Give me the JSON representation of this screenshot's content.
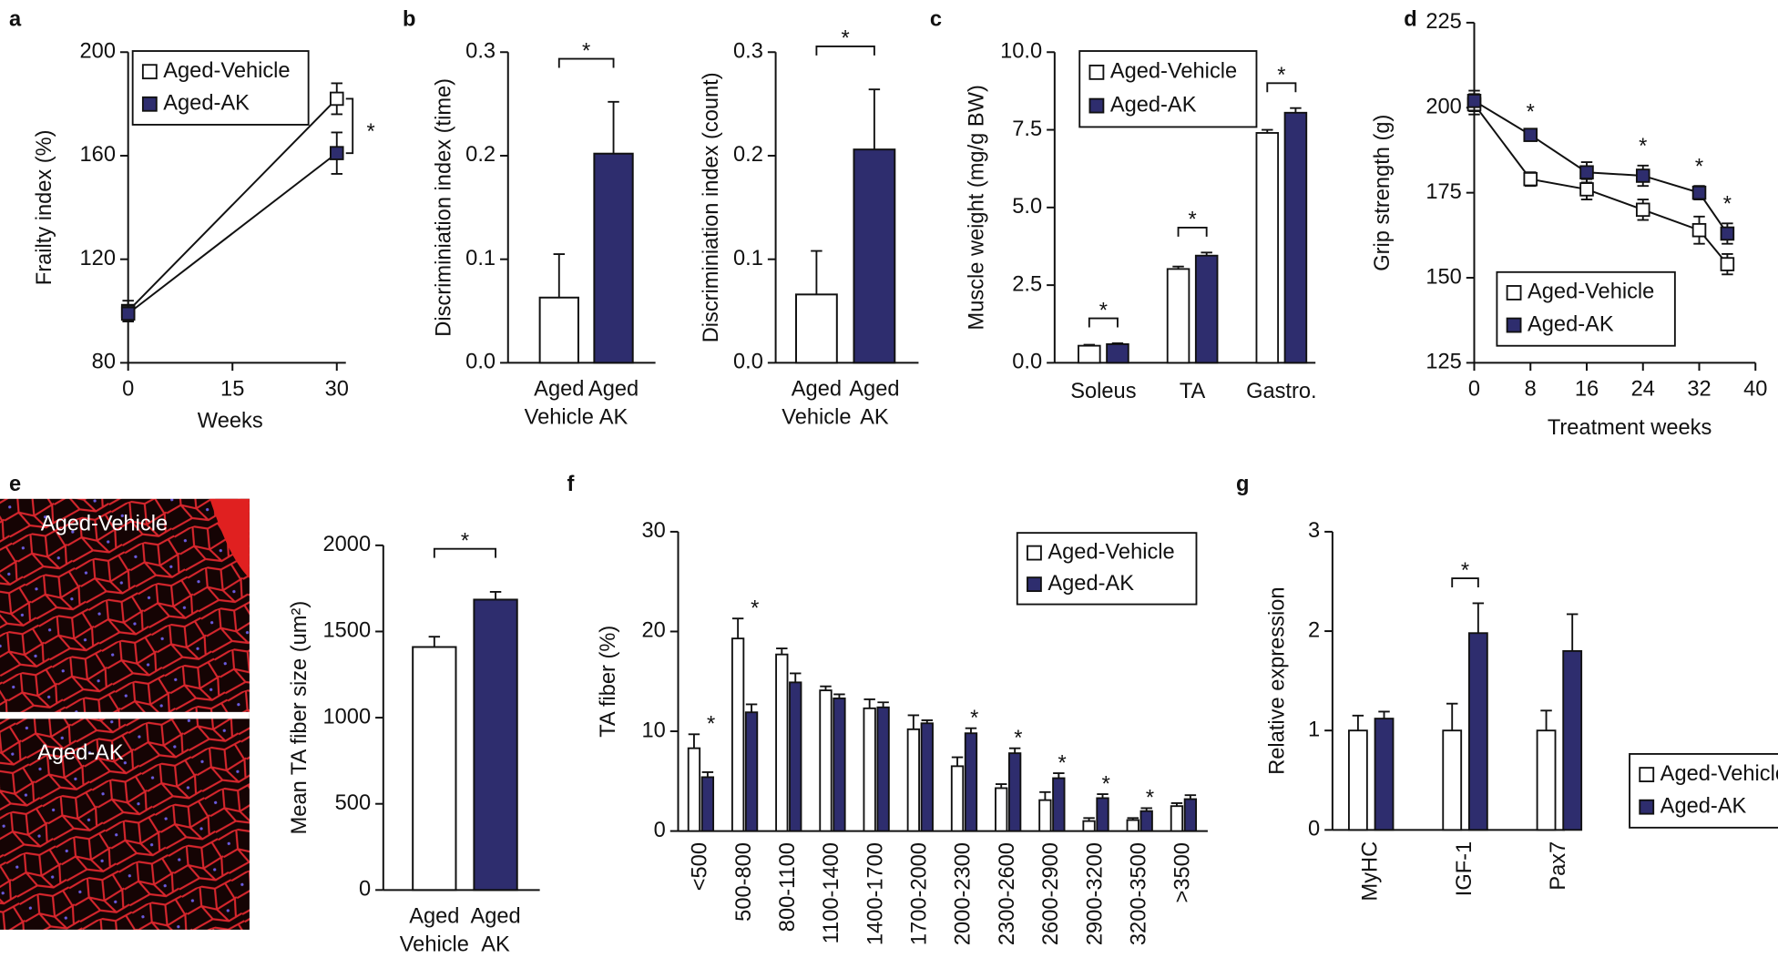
{
  "chart_data": [
    {
      "type": "line",
      "label": "a",
      "xlabel": "Weeks",
      "ylabel": "Frailty index (%)",
      "x": [
        0,
        30
      ],
      "series": [
        {
          "name": "Aged-Vehicle",
          "color": "#ffffff",
          "values": [
            100,
            182
          ],
          "errors": [
            4,
            6
          ]
        },
        {
          "name": "Aged-AK",
          "color": "#2e2d6e",
          "values": [
            99,
            161
          ],
          "errors": [
            3,
            8
          ]
        }
      ],
      "xlim": [
        0,
        30
      ],
      "xticks": [
        0,
        15,
        30
      ],
      "ylim": [
        80,
        200
      ],
      "yticks": [
        80,
        120,
        160,
        200
      ],
      "legend": "upper left",
      "annotation": "*"
    },
    {
      "type": "bar",
      "label": "b",
      "ylabel": "Discriminiation index (time)",
      "categories": [
        [
          "Aged",
          "Vehicle"
        ],
        [
          "Aged",
          "AK"
        ]
      ],
      "values": [
        0.063,
        0.202
      ],
      "errors": [
        0.042,
        0.05
      ],
      "colors": [
        "#ffffff",
        "#2e2d6e"
      ],
      "ylim": [
        0,
        0.3
      ],
      "yticks": [
        {
          "value": 0,
          "label": "0.0"
        },
        0.1,
        0.2,
        0.3
      ],
      "annotation": "*"
    },
    {
      "type": "bar",
      "ylabel": "Discriminiation index (count)",
      "categories": [
        [
          "Aged",
          "Vehicle"
        ],
        [
          "Aged",
          "AK"
        ]
      ],
      "values": [
        0.066,
        0.206
      ],
      "errors": [
        0.042,
        0.058
      ],
      "colors": [
        "#ffffff",
        "#2e2d6e"
      ],
      "ylim": [
        0,
        0.3
      ],
      "yticks": [
        {
          "value": 0,
          "label": "0.0"
        },
        0.1,
        0.2,
        0.3
      ],
      "annotation": "*"
    },
    {
      "type": "grouped_bar",
      "label": "c",
      "ylabel": "Muscle weight (mg/g BW)",
      "categories": [
        "Soleus",
        "TA",
        "Gastro."
      ],
      "series": [
        {
          "name": "Aged-Vehicle",
          "color": "#ffffff",
          "values": [
            0.55,
            3.02,
            7.4
          ],
          "errors": [
            0.03,
            0.08,
            0.1
          ]
        },
        {
          "name": "Aged-AK",
          "color": "#2e2d6e",
          "values": [
            0.6,
            3.45,
            8.05
          ],
          "errors": [
            0.03,
            0.1,
            0.15
          ]
        }
      ],
      "ylim": [
        0,
        10
      ],
      "yticks": [
        {
          "value": 0,
          "label": "0.0"
        },
        2.5,
        {
          "value": 5,
          "label": "5.0"
        },
        7.5,
        {
          "value": 10,
          "label": "10.0"
        }
      ],
      "legend": "upper left",
      "significance": [
        "*",
        "*",
        "*"
      ]
    },
    {
      "type": "line",
      "label": "d",
      "xlabel": "Treatment weeks",
      "ylabel": "Grip strength (g)",
      "x": [
        0,
        8,
        16,
        24,
        32,
        36
      ],
      "series": [
        {
          "name": "Aged-Vehicle",
          "color": "#ffffff",
          "values": [
            201,
            179,
            176,
            170,
            164,
            154
          ],
          "errors": [
            3,
            2,
            3,
            3,
            4,
            3
          ]
        },
        {
          "name": "Aged-AK",
          "color": "#2e2d6e",
          "values": [
            202,
            192,
            181,
            180,
            175,
            163
          ],
          "errors": [
            3,
            1,
            3,
            3,
            2,
            3
          ]
        }
      ],
      "xlim": [
        0,
        40
      ],
      "xticks": [
        0,
        8,
        16,
        24,
        32,
        40
      ],
      "ylim": [
        125,
        225
      ],
      "yticks": [
        125,
        150,
        175,
        200,
        225
      ],
      "legend": "lower left",
      "significance": [
        null,
        "*",
        null,
        "*",
        "*",
        "*"
      ]
    },
    {
      "type": "bar",
      "label": "e",
      "ylabel": "Mean TA fiber size (um²)",
      "image_labels": [
        "Aged-Vehicle",
        "Aged-AK"
      ],
      "categories": [
        [
          "Aged",
          "Vehicle"
        ],
        [
          "Aged",
          "AK"
        ]
      ],
      "values": [
        1410,
        1685
      ],
      "errors": [
        60,
        45
      ],
      "colors": [
        "#ffffff",
        "#2e2d6e"
      ],
      "ylim": [
        0,
        2000
      ],
      "yticks": [
        0,
        500,
        1000,
        1500,
        2000
      ],
      "annotation": "*"
    },
    {
      "type": "grouped_bar",
      "label": "f",
      "ylabel": "TA fiber (%)",
      "categories": [
        "<500",
        "500-800",
        "800-1100",
        "1100-1400",
        "1400-1700",
        "1700-2000",
        "2000-2300",
        "2300-2600",
        "2600-2900",
        "2900-3200",
        "3200-3500",
        ">3500"
      ],
      "series": [
        {
          "name": "Aged-Vehicle",
          "color": "#ffffff",
          "values": [
            8.3,
            19.3,
            17.7,
            14.1,
            12.3,
            10.2,
            6.5,
            4.3,
            3.1,
            1.0,
            1.1,
            2.5
          ],
          "errors": [
            1.4,
            2.0,
            0.6,
            0.4,
            0.9,
            1.4,
            0.9,
            0.4,
            0.8,
            0.3,
            0.2,
            0.3
          ]
        },
        {
          "name": "Aged-AK",
          "color": "#2e2d6e",
          "values": [
            5.4,
            11.9,
            14.9,
            13.3,
            12.4,
            10.8,
            9.8,
            7.8,
            5.3,
            3.3,
            2.0,
            3.2
          ],
          "errors": [
            0.5,
            0.8,
            0.9,
            0.4,
            0.5,
            0.3,
            0.5,
            0.5,
            0.5,
            0.4,
            0.3,
            0.4
          ]
        }
      ],
      "ylim": [
        0,
        30
      ],
      "yticks": [
        0,
        10,
        20,
        30
      ],
      "legend": "upper right",
      "significance": [
        "*",
        "*",
        null,
        null,
        null,
        null,
        "*",
        "*",
        "*",
        "*",
        "*",
        null
      ]
    },
    {
      "type": "grouped_bar",
      "label": "g",
      "ylabel": "Relative expression",
      "categories": [
        "MyHC",
        "IGF-1",
        "Pax7"
      ],
      "series": [
        {
          "name": "Aged-Vehicle",
          "color": "#ffffff",
          "values": [
            1,
            1,
            1
          ],
          "errors": [
            0.15,
            0.27,
            0.2
          ]
        },
        {
          "name": "Aged-AK",
          "color": "#2e2d6e",
          "values": [
            1.12,
            1.98,
            1.8
          ],
          "errors": [
            0.07,
            0.3,
            0.37
          ]
        }
      ],
      "ylim": [
        0,
        3
      ],
      "yticks": [
        0,
        1,
        2,
        3
      ],
      "legend": "lower right",
      "significance": [
        null,
        "*",
        null
      ]
    }
  ]
}
